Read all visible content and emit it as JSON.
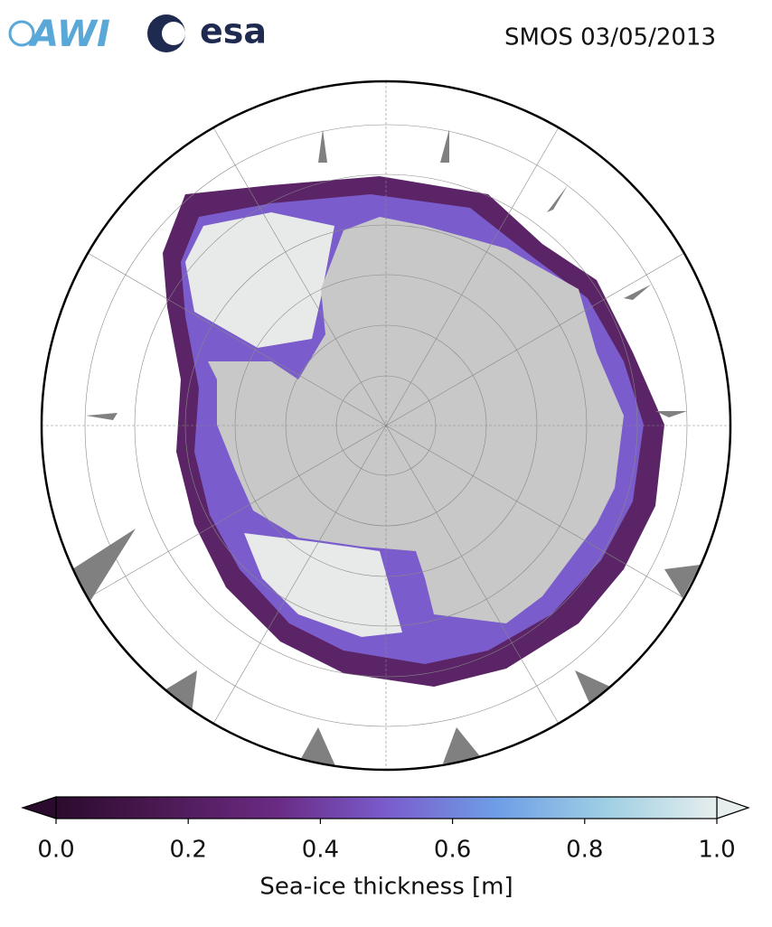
{
  "logos": [
    "AWI",
    "esa"
  ],
  "title": "SMOS 03/05/2013",
  "colorbar": {
    "label": "Sea-ice thickness [m]",
    "lim": [
      0,
      1
    ],
    "ticks": [
      {
        "value": 0,
        "label": "0.0"
      },
      0.2,
      0.4,
      0.6,
      0.8,
      {
        "value": 1,
        "label": "1.0"
      }
    ],
    "colormap": [
      "#2b0b2d",
      "#4d1a55",
      "#6a2a84",
      "#7a5ccc",
      "#6e9ee6",
      "#9fcfe3",
      "#e6eeee"
    ],
    "extend": "both"
  }
}
